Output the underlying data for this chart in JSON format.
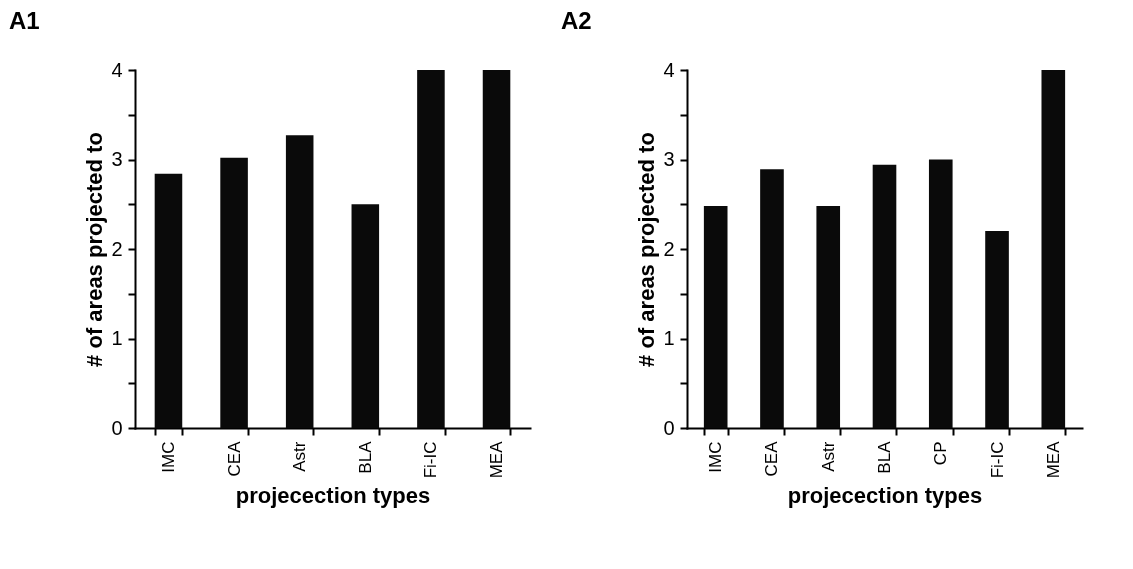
{
  "chart_data": [
    {
      "type": "bar",
      "title": "A1",
      "xlabel": "projecection types",
      "ylabel": "# of areas projected to",
      "categories": [
        "IMC",
        "CEA",
        "Astr",
        "BLA",
        "Fi-IC",
        "MEA"
      ],
      "values": [
        2.84,
        3.02,
        3.27,
        2.5,
        4,
        4
      ],
      "color": "#0a0a0a",
      "ylim": [
        0,
        4
      ],
      "yticks": [
        0,
        {
          "value": 0.5,
          "label": null
        },
        1,
        {
          "value": 1.5,
          "label": null
        },
        2,
        {
          "value": 2.5,
          "label": null
        },
        3,
        {
          "value": 3.5,
          "label": null
        },
        4
      ],
      "grid": false
    },
    {
      "type": "bar",
      "title": "A2",
      "xlabel": "projecection types",
      "ylabel": "# of areas projected to",
      "categories": [
        "IMC",
        "CEA",
        "Astr",
        "BLA",
        "CP",
        "Fi-IC",
        "MEA"
      ],
      "values": [
        2.48,
        2.89,
        2.48,
        2.94,
        3.0,
        2.2,
        4
      ],
      "color": "#0a0a0a",
      "ylim": [
        0,
        4
      ],
      "yticks": [
        0,
        {
          "value": 0.5,
          "label": null
        },
        1,
        {
          "value": 1.5,
          "label": null
        },
        2,
        {
          "value": 2.5,
          "label": null
        },
        3,
        {
          "value": 3.5,
          "label": null
        },
        4
      ],
      "grid": false
    }
  ]
}
